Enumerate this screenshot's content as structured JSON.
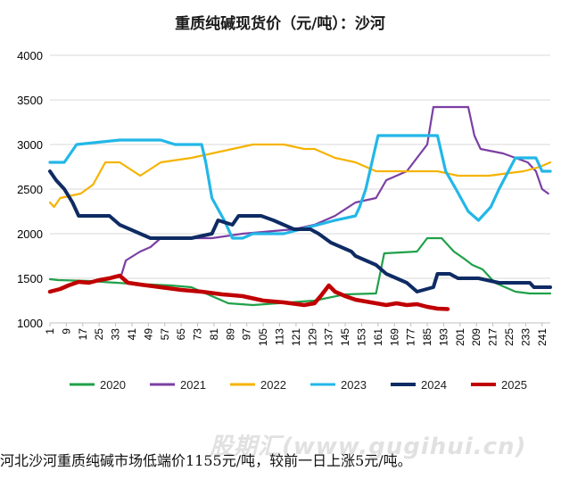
{
  "chart_data": {
    "type": "line",
    "title": "重质纯碱现货价（元/吨）：沙河",
    "ylim": [
      1000,
      4000
    ],
    "yticks": [
      1000,
      1500,
      2000,
      2500,
      3000,
      3500,
      4000
    ],
    "xlim": [
      1,
      245
    ],
    "xticks": [
      1,
      9,
      17,
      25,
      33,
      41,
      49,
      57,
      65,
      73,
      81,
      89,
      97,
      105,
      113,
      121,
      129,
      137,
      145,
      153,
      161,
      169,
      177,
      185,
      193,
      201,
      209,
      217,
      225,
      233,
      241
    ],
    "legend_position": "bottom",
    "series": [
      {
        "name": "2020",
        "color": "#1fa149",
        "points": [
          [
            1,
            1490
          ],
          [
            5,
            1480
          ],
          [
            20,
            1470
          ],
          [
            40,
            1440
          ],
          [
            60,
            1420
          ],
          [
            70,
            1400
          ],
          [
            80,
            1300
          ],
          [
            88,
            1220
          ],
          [
            100,
            1200
          ],
          [
            130,
            1250
          ],
          [
            145,
            1320
          ],
          [
            160,
            1330
          ],
          [
            164,
            1780
          ],
          [
            180,
            1800
          ],
          [
            185,
            1950
          ],
          [
            192,
            1950
          ],
          [
            198,
            1800
          ],
          [
            203,
            1720
          ],
          [
            207,
            1650
          ],
          [
            212,
            1600
          ],
          [
            218,
            1450
          ],
          [
            228,
            1350
          ],
          [
            235,
            1330
          ],
          [
            245,
            1330
          ]
        ]
      },
      {
        "name": "2021",
        "color": "#7b3fa3",
        "points": [
          [
            36,
            1550
          ],
          [
            38,
            1700
          ],
          [
            45,
            1800
          ],
          [
            50,
            1850
          ],
          [
            55,
            1950
          ],
          [
            80,
            1950
          ],
          [
            95,
            2000
          ],
          [
            110,
            2030
          ],
          [
            120,
            2050
          ],
          [
            130,
            2100
          ],
          [
            140,
            2200
          ],
          [
            150,
            2350
          ],
          [
            160,
            2400
          ],
          [
            165,
            2600
          ],
          [
            175,
            2700
          ],
          [
            185,
            3000
          ],
          [
            188,
            3420
          ],
          [
            205,
            3420
          ],
          [
            208,
            3100
          ],
          [
            211,
            2950
          ],
          [
            222,
            2900
          ],
          [
            228,
            2850
          ],
          [
            234,
            2800
          ],
          [
            238,
            2700
          ],
          [
            241,
            2500
          ],
          [
            244,
            2450
          ]
        ]
      },
      {
        "name": "2022",
        "color": "#f5b300",
        "points": [
          [
            1,
            2350
          ],
          [
            3,
            2300
          ],
          [
            6,
            2400
          ],
          [
            10,
            2420
          ],
          [
            16,
            2450
          ],
          [
            22,
            2550
          ],
          [
            28,
            2800
          ],
          [
            35,
            2800
          ],
          [
            45,
            2650
          ],
          [
            55,
            2800
          ],
          [
            70,
            2850
          ],
          [
            80,
            2900
          ],
          [
            90,
            2950
          ],
          [
            100,
            3000
          ],
          [
            115,
            3000
          ],
          [
            125,
            2950
          ],
          [
            130,
            2950
          ],
          [
            140,
            2850
          ],
          [
            150,
            2800
          ],
          [
            160,
            2700
          ],
          [
            180,
            2700
          ],
          [
            190,
            2700
          ],
          [
            200,
            2650
          ],
          [
            215,
            2650
          ],
          [
            225,
            2680
          ],
          [
            232,
            2700
          ],
          [
            240,
            2750
          ],
          [
            245,
            2800
          ]
        ]
      },
      {
        "name": "2023",
        "color": "#22b7e8",
        "points": [
          [
            1,
            2800
          ],
          [
            8,
            2800
          ],
          [
            14,
            3000
          ],
          [
            35,
            3050
          ],
          [
            55,
            3050
          ],
          [
            62,
            3000
          ],
          [
            75,
            3000
          ],
          [
            77,
            2800
          ],
          [
            80,
            2400
          ],
          [
            86,
            2150
          ],
          [
            90,
            1950
          ],
          [
            95,
            1950
          ],
          [
            100,
            2000
          ],
          [
            115,
            2000
          ],
          [
            140,
            2150
          ],
          [
            150,
            2200
          ],
          [
            152,
            2300
          ],
          [
            155,
            2500
          ],
          [
            158,
            2800
          ],
          [
            161,
            3100
          ],
          [
            180,
            3100
          ],
          [
            190,
            3100
          ],
          [
            194,
            2700
          ],
          [
            199,
            2500
          ],
          [
            205,
            2250
          ],
          [
            210,
            2150
          ],
          [
            216,
            2300
          ],
          [
            220,
            2500
          ],
          [
            228,
            2850
          ],
          [
            238,
            2850
          ],
          [
            241,
            2700
          ],
          [
            245,
            2700
          ]
        ]
      },
      {
        "name": "2024",
        "color": "#0e2b63",
        "points": [
          [
            1,
            2700
          ],
          [
            4,
            2600
          ],
          [
            8,
            2500
          ],
          [
            12,
            2350
          ],
          [
            15,
            2200
          ],
          [
            30,
            2200
          ],
          [
            35,
            2100
          ],
          [
            40,
            2050
          ],
          [
            45,
            2000
          ],
          [
            50,
            1950
          ],
          [
            70,
            1950
          ],
          [
            80,
            2000
          ],
          [
            83,
            2150
          ],
          [
            90,
            2100
          ],
          [
            93,
            2200
          ],
          [
            104,
            2200
          ],
          [
            110,
            2150
          ],
          [
            115,
            2100
          ],
          [
            120,
            2050
          ],
          [
            128,
            2050
          ],
          [
            132,
            2000
          ],
          [
            138,
            1900
          ],
          [
            143,
            1850
          ],
          [
            148,
            1800
          ],
          [
            150,
            1750
          ],
          [
            155,
            1700
          ],
          [
            160,
            1650
          ],
          [
            165,
            1550
          ],
          [
            170,
            1500
          ],
          [
            175,
            1450
          ],
          [
            180,
            1350
          ],
          [
            188,
            1400
          ],
          [
            190,
            1550
          ],
          [
            196,
            1550
          ],
          [
            200,
            1500
          ],
          [
            210,
            1500
          ],
          [
            220,
            1450
          ],
          [
            235,
            1450
          ],
          [
            237,
            1400
          ],
          [
            245,
            1400
          ]
        ]
      },
      {
        "name": "2025",
        "color": "#c00000",
        "points": [
          [
            1,
            1350
          ],
          [
            6,
            1380
          ],
          [
            10,
            1420
          ],
          [
            15,
            1460
          ],
          [
            20,
            1450
          ],
          [
            25,
            1480
          ],
          [
            30,
            1500
          ],
          [
            35,
            1530
          ],
          [
            39,
            1450
          ],
          [
            45,
            1430
          ],
          [
            55,
            1400
          ],
          [
            65,
            1370
          ],
          [
            75,
            1350
          ],
          [
            85,
            1320
          ],
          [
            95,
            1300
          ],
          [
            105,
            1250
          ],
          [
            115,
            1230
          ],
          [
            125,
            1200
          ],
          [
            130,
            1220
          ],
          [
            133,
            1300
          ],
          [
            137,
            1420
          ],
          [
            140,
            1350
          ],
          [
            145,
            1300
          ],
          [
            150,
            1260
          ],
          [
            155,
            1240
          ],
          [
            160,
            1220
          ],
          [
            165,
            1200
          ],
          [
            170,
            1220
          ],
          [
            175,
            1200
          ],
          [
            180,
            1210
          ],
          [
            185,
            1180
          ],
          [
            190,
            1160
          ],
          [
            195,
            1155
          ]
        ]
      }
    ]
  },
  "caption": {
    "text": "河北沙河重质纯碱市场低端价1155元/吨，较前一日上涨5元/吨。"
  },
  "watermark": {
    "text": "股期汇(www.gugihui.cn)"
  }
}
